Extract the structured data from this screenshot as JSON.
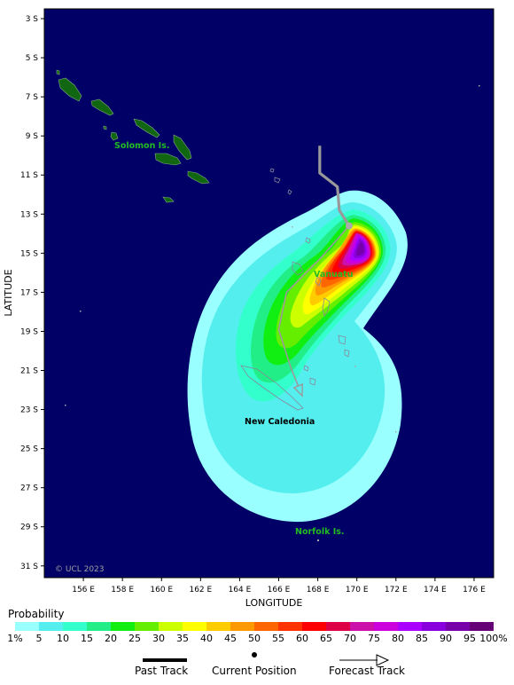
{
  "map": {
    "y_axis_title": "LATITUDE",
    "x_axis_title": "LONGITUDE",
    "lat_ticks": [
      "3 S",
      "5 S",
      "7 S",
      "9 S",
      "11 S",
      "13 S",
      "15 S",
      "17 S",
      "19 S",
      "21 S",
      "23 S",
      "25 S",
      "27 S",
      "29 S",
      "31 S"
    ],
    "lon_ticks": [
      "156 E",
      "158 E",
      "160 E",
      "162 E",
      "164 E",
      "166 E",
      "168 E",
      "170 E",
      "172 E",
      "174 E",
      "176 E"
    ],
    "places": {
      "solomon": "Solomon Is.",
      "vanuatu": "Vanuatu",
      "new_caledonia": "New Caledonia",
      "norfolk": "Norfolk Is."
    },
    "copyright": "© UCL 2023",
    "ocean_color": "#000066"
  },
  "legend": {
    "title": "Probability",
    "labels": [
      "1%",
      "5",
      "10",
      "15",
      "20",
      "25",
      "30",
      "35",
      "40",
      "45",
      "50",
      "55",
      "60",
      "65",
      "70",
      "75",
      "80",
      "85",
      "90",
      "95",
      "100%"
    ],
    "colors": [
      "#99ffff",
      "#55eeee",
      "#33ffcc",
      "#22ee88",
      "#11ee11",
      "#66ee00",
      "#ccff00",
      "#ffff00",
      "#ffcc00",
      "#ff9900",
      "#ff6600",
      "#ff3300",
      "#ff0000",
      "#dd0044",
      "#cc11aa",
      "#cc00dd",
      "#aa00ff",
      "#8800dd",
      "#7700aa",
      "#660077"
    ],
    "past_track_label": "Past Track",
    "current_position_label": "Current Position",
    "forecast_track_label": "Forecast Track"
  },
  "storm": {
    "current_position": {
      "lon": 169.6,
      "lat": -13.6
    },
    "past_track": [
      {
        "lon": 168.1,
        "lat": -9.5
      },
      {
        "lon": 168.1,
        "lat": -10.9
      },
      {
        "lon": 169.0,
        "lat": -11.6
      },
      {
        "lon": 169.1,
        "lat": -12.8
      },
      {
        "lon": 169.6,
        "lat": -13.6
      }
    ],
    "forecast_track": [
      {
        "lon": 169.6,
        "lat": -13.6
      },
      {
        "lon": 168.2,
        "lat": -15.2
      },
      {
        "lon": 166.4,
        "lat": -17.0
      },
      {
        "lon": 166.0,
        "lat": -18.9
      },
      {
        "lon": 166.6,
        "lat": -20.8
      },
      {
        "lon": 167.2,
        "lat": -22.3
      }
    ]
  }
}
